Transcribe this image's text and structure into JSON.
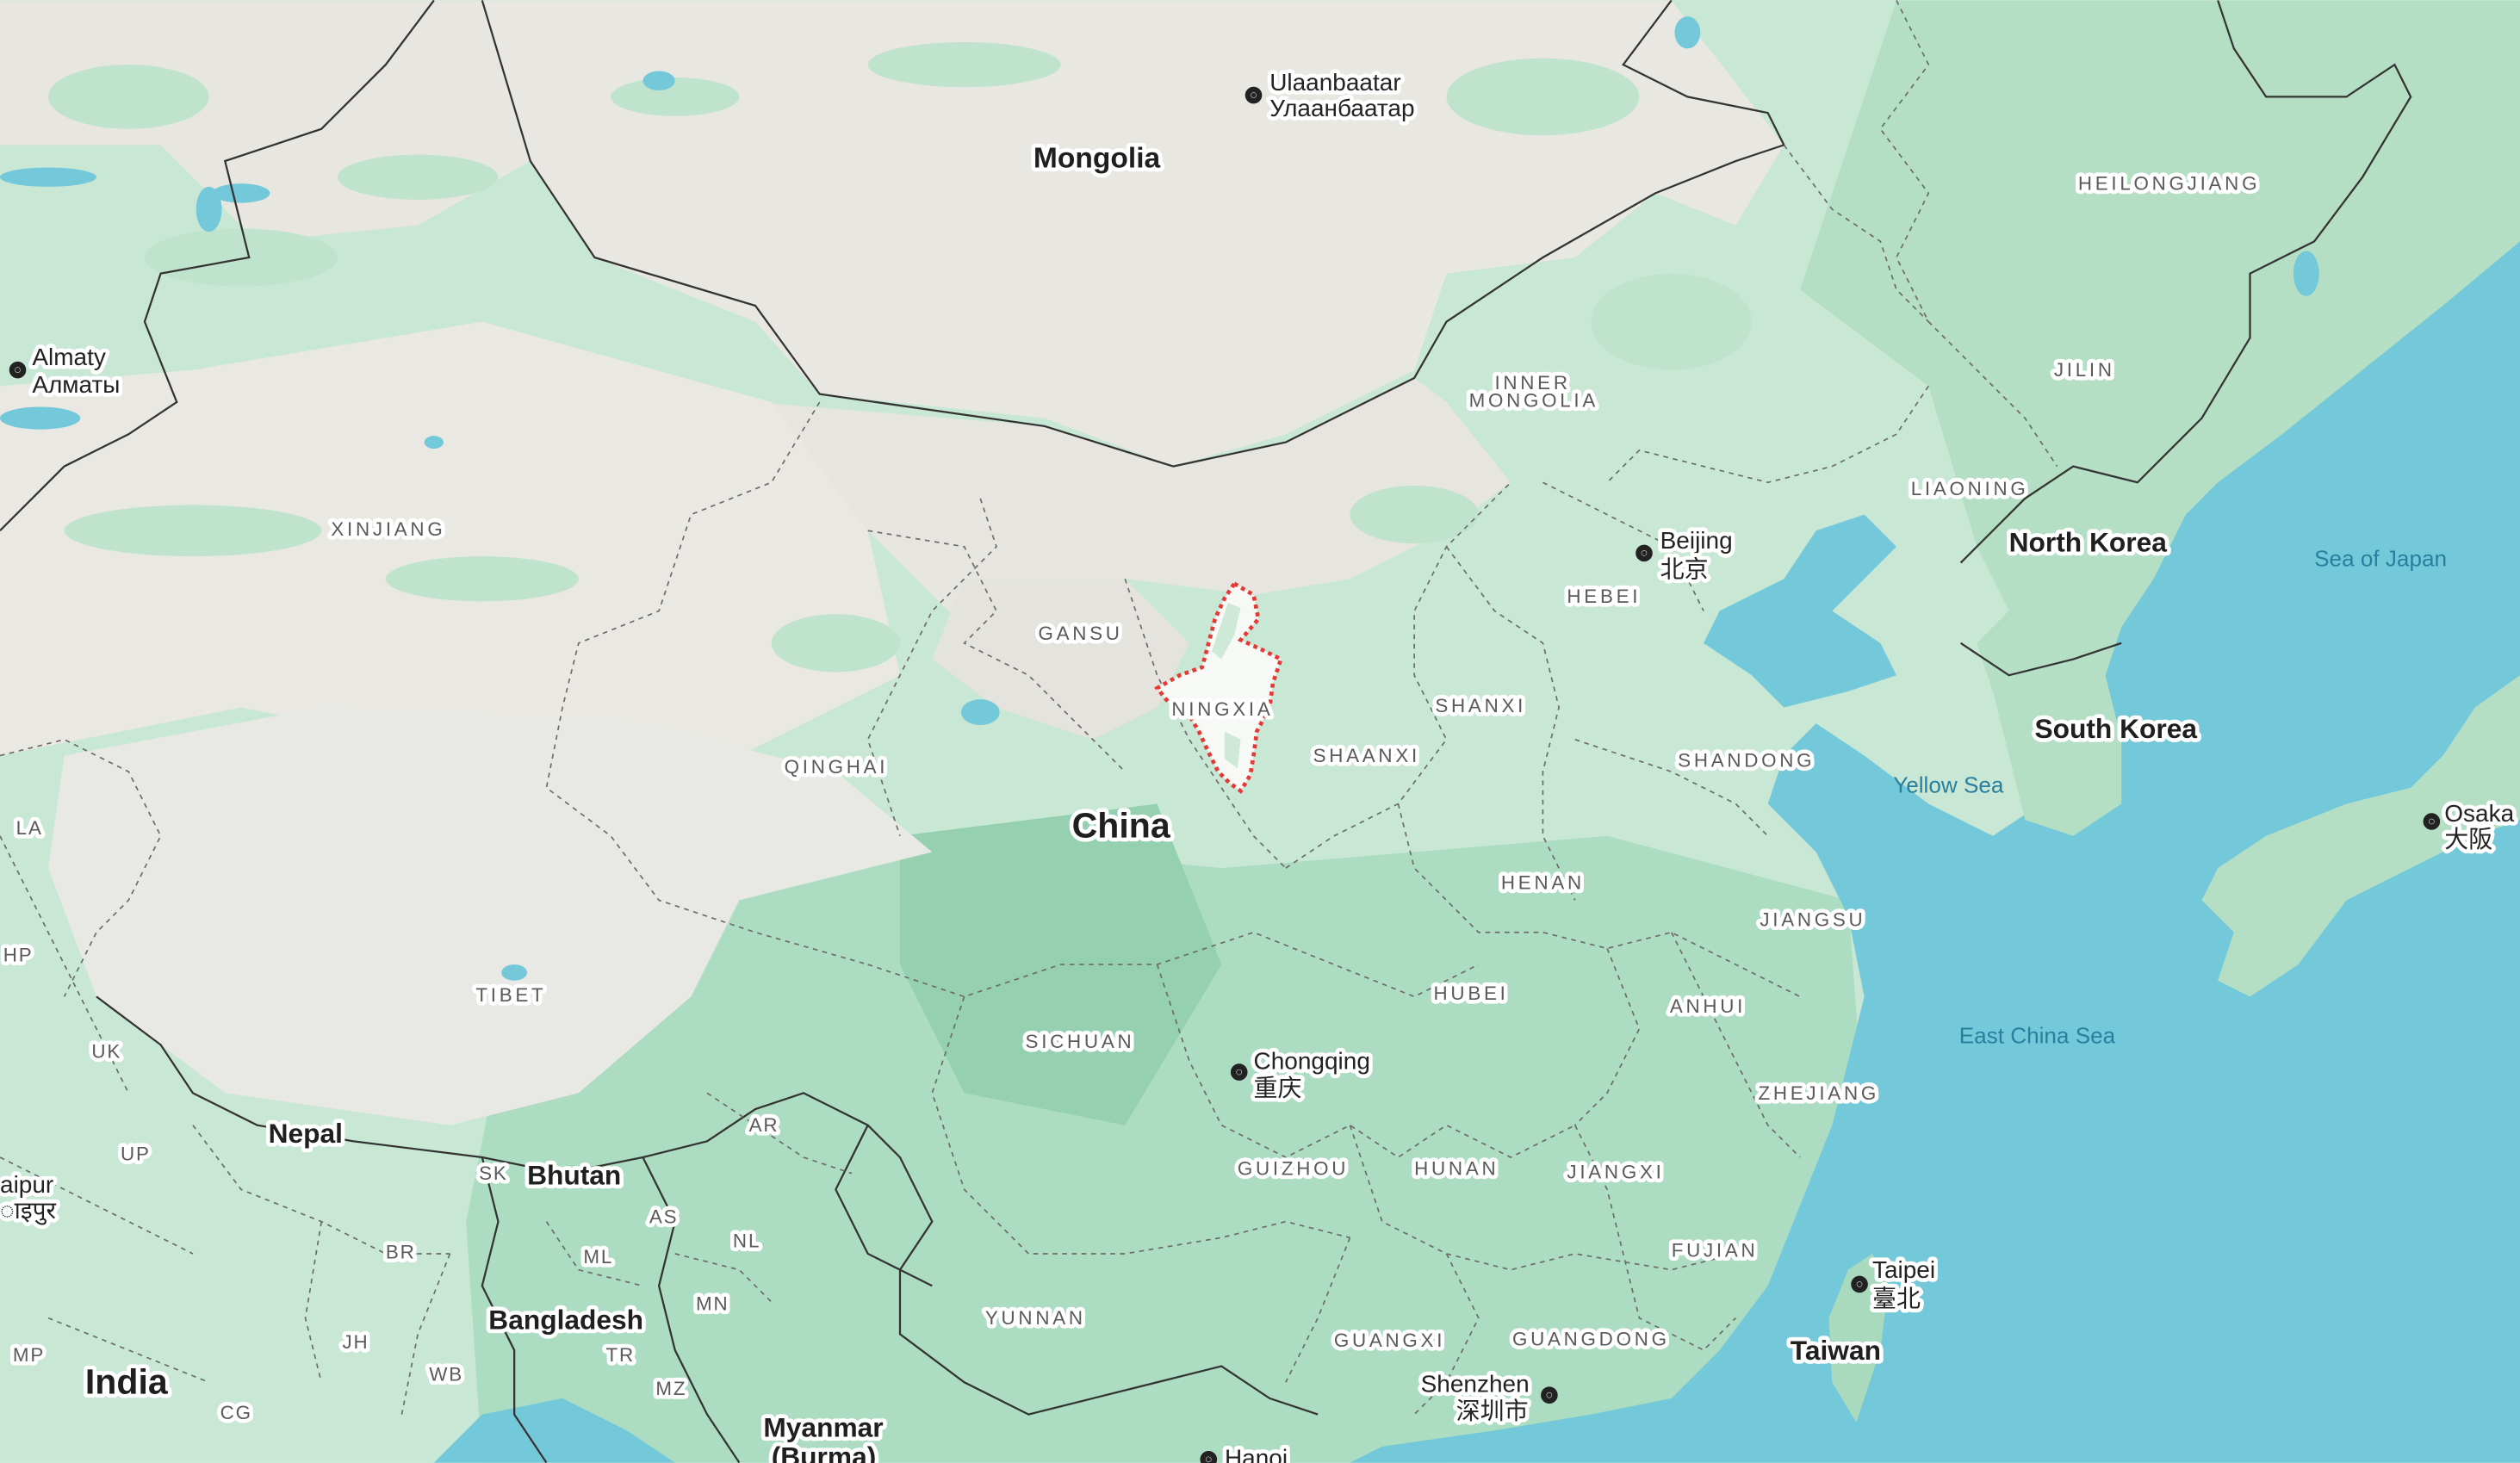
{
  "map": {
    "colors": {
      "water": "#73c8da",
      "land_green": "#c6e6d2",
      "land_green_dark": "#9ed7b8",
      "desert": "#e9e8e3",
      "highlight_border": "#e53935",
      "highlight_fill": "#fafafa"
    },
    "highlighted_region": "NINGXIA",
    "countries": {
      "mongolia": "Mongolia",
      "china": "China",
      "north_korea": "North Korea",
      "south_korea": "South Korea",
      "taiwan": "Taiwan",
      "india": "India",
      "nepal": "Nepal",
      "bhutan": "Bhutan",
      "bangladesh": "Bangladesh",
      "myanmar_1": "Myanmar",
      "myanmar_2": "(Burma)"
    },
    "provinces": {
      "heilongjiang": "HEILONGJIANG",
      "jilin": "JILIN",
      "liaoning": "LIAONING",
      "inner_mongolia_1": "INNER",
      "inner_mongolia_2": "MONGOLIA",
      "xinjiang": "XINJIANG",
      "gansu": "GANSU",
      "ningxia": "NINGXIA",
      "hebei": "HEBEI",
      "shanxi": "SHANXI",
      "shaanxi": "SHAANXI",
      "shandong": "SHANDONG",
      "qinghai": "QINGHAI",
      "tibet": "TIBET",
      "henan": "HENAN",
      "jiangsu": "JIANGSU",
      "hubei": "HUBEI",
      "anhui": "ANHUI",
      "sichuan": "SICHUAN",
      "zhejiang": "ZHEJIANG",
      "guizhou": "GUIZHOU",
      "hunan": "HUNAN",
      "jiangxi": "JIANGXI",
      "fujian": "FUJIAN",
      "yunnan": "YUNNAN",
      "guangxi": "GUANGXI",
      "guangdong": "GUANGDONG",
      "la": "LA",
      "hp": "HP",
      "uk": "UK",
      "up": "UP",
      "sk": "SK",
      "ar": "AR",
      "as": "AS",
      "nl": "NL",
      "ml": "ML",
      "br": "BR",
      "mn": "MN",
      "jh": "JH",
      "wb": "WB",
      "tr": "TR",
      "mz": "MZ",
      "mp": "MP",
      "cg": "CG"
    },
    "cities": {
      "ulaanbaatar": "Ulaanbaatar",
      "ulaanbaatar_local": "Улаанбаатар",
      "almaty": "Almaty",
      "almaty_local": "Алматы",
      "beijing": "Beijing",
      "beijing_local": "北京",
      "chongqing": "Chongqing",
      "chongqing_local": "重庆",
      "taipei": "Taipei",
      "taipei_local": "臺北",
      "shenzhen": "Shenzhen",
      "shenzhen_local": "深圳市",
      "osaka": "Osaka",
      "osaka_local": "大阪",
      "jaipur": "aipur",
      "jaipur_local": "ाइपुर",
      "hanoi": "Hanoi"
    },
    "seas": {
      "sea_of_japan": "Sea of Japan",
      "yellow_sea": "Yellow Sea",
      "east_china_sea": "East China Sea"
    }
  }
}
